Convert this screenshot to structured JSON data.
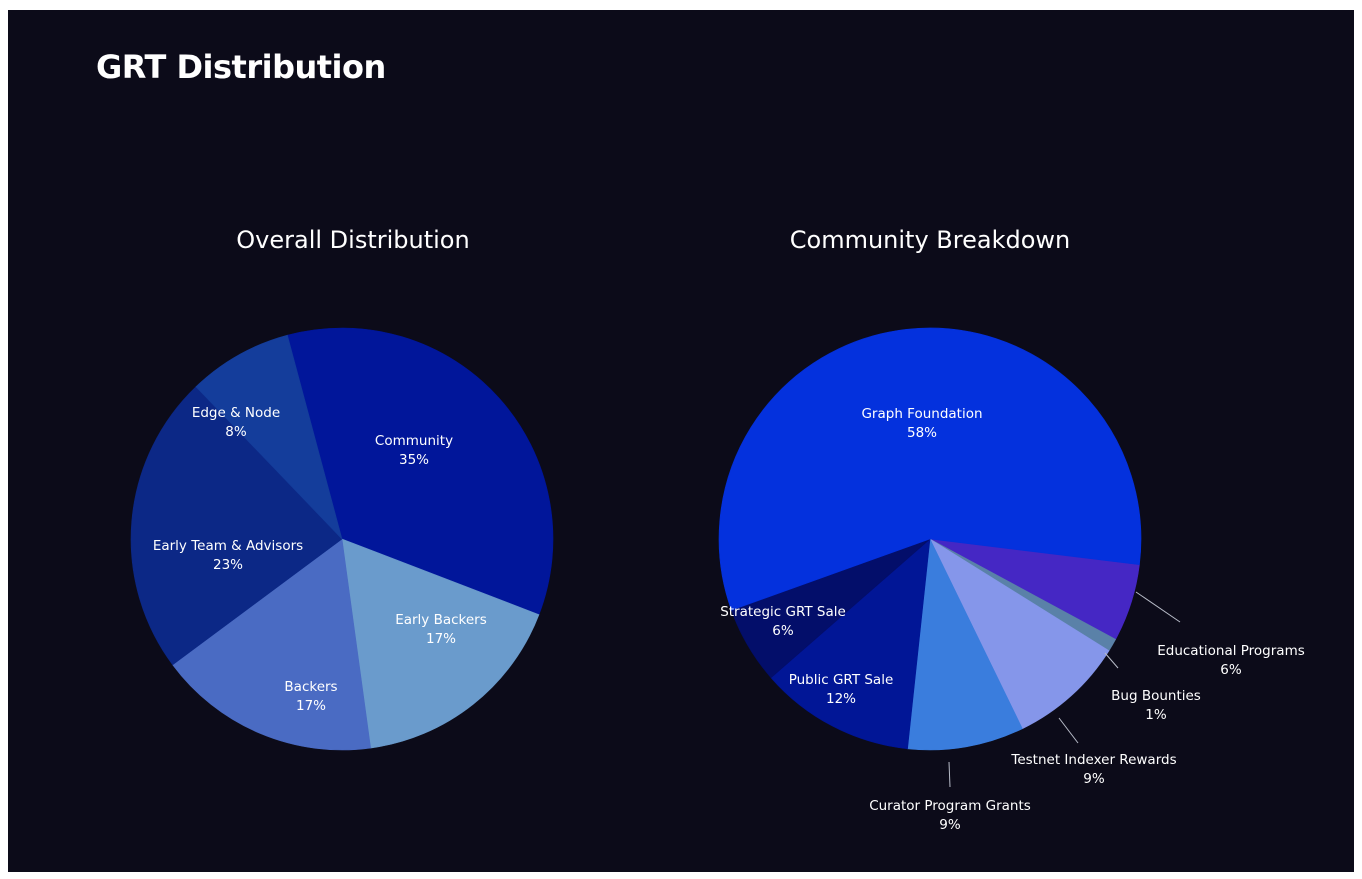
{
  "page": {
    "title": "GRT Distribution",
    "background": "#0c0b19",
    "text_color": "#ffffff"
  },
  "chart_data": [
    {
      "type": "pie",
      "title": "Overall Distribution",
      "start_angle_deg": -15,
      "slices": [
        {
          "label": "Community",
          "value": 35,
          "value_label": "35%",
          "color": "#01169a"
        },
        {
          "label": "Early Backers",
          "value": 17,
          "value_label": "17%",
          "color": "#6a9bcc"
        },
        {
          "label": "Backers",
          "value": 17,
          "value_label": "17%",
          "color": "#4a6bc3"
        },
        {
          "label": "Early Team & Advisors",
          "value": 23,
          "value_label": "23%",
          "color": "#0c2886"
        },
        {
          "label": "Edge & Node",
          "value": 8,
          "value_label": "8%",
          "color": "#143d9b"
        }
      ]
    },
    {
      "type": "pie",
      "title": "Community Breakdown",
      "start_angle_deg": 97,
      "slices": [
        {
          "label": "Educational Programs",
          "value": 6,
          "value_label": "6%",
          "color": "#4527c4"
        },
        {
          "label": "Bug Bounties",
          "value": 1,
          "value_label": "1%",
          "color": "#5a81a8"
        },
        {
          "label": "Testnet Indexer Rewards",
          "value": 9,
          "value_label": "9%",
          "color": "#8596ea"
        },
        {
          "label": "Curator Program Grants",
          "value": 9,
          "value_label": "9%",
          "color": "#3a7ddd"
        },
        {
          "label": "Public GRT Sale",
          "value": 12,
          "value_label": "12%",
          "color": "#011696"
        },
        {
          "label": "Strategic GRT Sale",
          "value": 6,
          "value_label": "6%",
          "color": "#030e6a"
        },
        {
          "label": "Graph Foundation",
          "value": 58,
          "value_label": "58%",
          "color": "#0431dd"
        }
      ]
    }
  ]
}
